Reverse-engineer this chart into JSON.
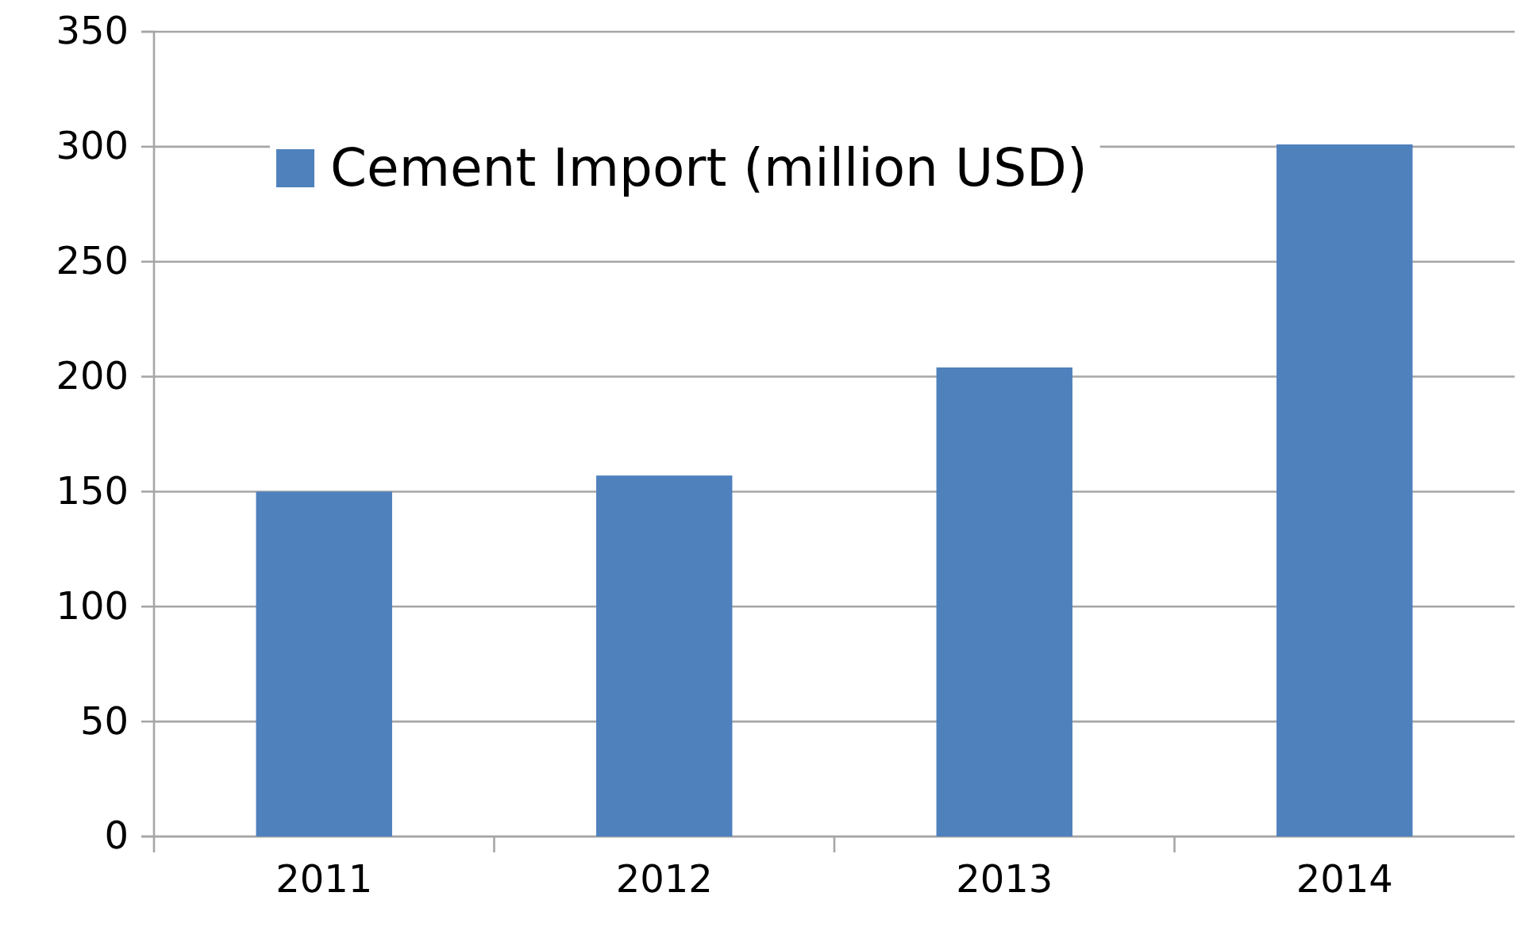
{
  "chart_data": {
    "type": "bar",
    "categories": [
      "2011",
      "2012",
      "2013",
      "2014"
    ],
    "series": [
      {
        "name": "Cement Import (million USD)",
        "color": "#4f81bd",
        "values": [
          150,
          157,
          204,
          301
        ]
      }
    ],
    "ylim": [
      0,
      350
    ],
    "yticks": [
      0,
      50,
      100,
      150,
      200,
      250,
      300,
      350
    ],
    "grid": "y",
    "legend": "top left"
  }
}
